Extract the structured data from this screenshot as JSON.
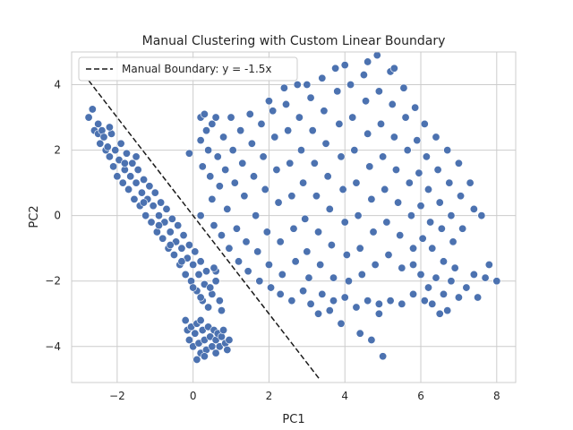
{
  "chart_data": {
    "type": "scatter",
    "title": "Manual Clustering with Custom Linear Boundary",
    "xlabel": "PC1",
    "ylabel": "PC2",
    "xlim": [
      -3.2,
      8.5
    ],
    "ylim": [
      -5.1,
      5.0
    ],
    "xticks": [
      -2,
      0,
      2,
      4,
      6,
      8
    ],
    "yticks": [
      -4,
      -2,
      0,
      2,
      4
    ],
    "xtick_labels": [
      "−2",
      "0",
      "2",
      "4",
      "6",
      "8"
    ],
    "ytick_labels": [
      "−4",
      "−2",
      "0",
      "2",
      "4"
    ],
    "grid": true,
    "legend_placement": "top-left",
    "point_color": "#4c72b0",
    "boundary_color": "#1a1a1a",
    "boundary": {
      "label": "Manual Boundary: y = -1.5x",
      "slope": -1.5,
      "x_range": [
        -2.75,
        3.35
      ]
    },
    "points": [
      [
        -2.75,
        3.0
      ],
      [
        -2.65,
        3.25
      ],
      [
        -2.6,
        2.6
      ],
      [
        -2.5,
        2.5
      ],
      [
        -2.45,
        2.2
      ],
      [
        -2.4,
        2.6
      ],
      [
        -2.3,
        2.0
      ],
      [
        -2.35,
        2.4
      ],
      [
        -2.2,
        1.8
      ],
      [
        -2.25,
        2.1
      ],
      [
        -2.15,
        2.5
      ],
      [
        -2.1,
        1.5
      ],
      [
        -2.05,
        2.0
      ],
      [
        -2.0,
        1.2
      ],
      [
        -1.95,
        1.7
      ],
      [
        -1.9,
        2.2
      ],
      [
        -1.85,
        1.0
      ],
      [
        -1.8,
        1.4
      ],
      [
        -1.75,
        1.9
      ],
      [
        -1.7,
        0.8
      ],
      [
        -1.65,
        1.2
      ],
      [
        -1.6,
        1.6
      ],
      [
        -1.55,
        0.5
      ],
      [
        -1.5,
        1.0
      ],
      [
        -1.45,
        1.4
      ],
      [
        -1.4,
        0.3
      ],
      [
        -1.35,
        0.7
      ],
      [
        -1.3,
        1.1
      ],
      [
        -1.25,
        0.0
      ],
      [
        -1.2,
        0.5
      ],
      [
        -1.15,
        0.9
      ],
      [
        -1.1,
        -0.2
      ],
      [
        -1.05,
        0.3
      ],
      [
        -1.0,
        0.7
      ],
      [
        -0.95,
        -0.5
      ],
      [
        -0.9,
        0.0
      ],
      [
        -0.85,
        0.4
      ],
      [
        -0.8,
        -0.7
      ],
      [
        -0.75,
        -0.2
      ],
      [
        -0.7,
        0.2
      ],
      [
        -0.65,
        -1.0
      ],
      [
        -0.6,
        -0.5
      ],
      [
        -0.55,
        -0.1
      ],
      [
        -0.5,
        -1.2
      ],
      [
        -0.45,
        -0.8
      ],
      [
        -0.4,
        -0.3
      ],
      [
        -0.35,
        -1.5
      ],
      [
        -0.3,
        -1.0
      ],
      [
        -0.25,
        -0.6
      ],
      [
        -0.2,
        -1.8
      ],
      [
        -0.15,
        -1.3
      ],
      [
        -0.1,
        -0.9
      ],
      [
        -0.05,
        -2.0
      ],
      [
        0.0,
        -1.5
      ],
      [
        0.05,
        -1.1
      ],
      [
        0.1,
        -2.3
      ],
      [
        0.15,
        -1.8
      ],
      [
        0.2,
        -1.4
      ],
      [
        0.25,
        -2.6
      ],
      [
        0.3,
        -2.1
      ],
      [
        0.35,
        -1.7
      ],
      [
        0.4,
        -2.8
      ],
      [
        0.5,
        -2.4
      ],
      [
        0.6,
        -2.0
      ],
      [
        0.7,
        -2.6
      ],
      [
        0.75,
        -2.9
      ],
      [
        0.6,
        -1.7
      ],
      [
        0.55,
        -1.6
      ],
      [
        -2.5,
        2.8
      ],
      [
        -2.2,
        2.7
      ],
      [
        -1.8,
        1.6
      ],
      [
        -1.5,
        1.8
      ],
      [
        -1.3,
        0.4
      ],
      [
        -0.9,
        -0.3
      ],
      [
        -0.6,
        -0.9
      ],
      [
        -0.3,
        -1.4
      ],
      [
        0.0,
        -2.2
      ],
      [
        0.2,
        -2.5
      ],
      [
        0.45,
        -2.2
      ],
      [
        -0.2,
        -3.2
      ],
      [
        -0.15,
        -3.5
      ],
      [
        -0.1,
        -3.8
      ],
      [
        -0.05,
        -3.4
      ],
      [
        0.0,
        -4.0
      ],
      [
        0.05,
        -3.6
      ],
      [
        0.1,
        -3.3
      ],
      [
        0.15,
        -3.9
      ],
      [
        0.2,
        -4.2
      ],
      [
        0.25,
        -3.5
      ],
      [
        0.3,
        -3.8
      ],
      [
        0.35,
        -4.1
      ],
      [
        0.4,
        -3.4
      ],
      [
        0.45,
        -3.7
      ],
      [
        0.5,
        -4.0
      ],
      [
        0.55,
        -3.5
      ],
      [
        0.6,
        -3.8
      ],
      [
        0.65,
        -3.6
      ],
      [
        0.7,
        -4.0
      ],
      [
        0.75,
        -3.7
      ],
      [
        0.8,
        -3.5
      ],
      [
        0.85,
        -3.9
      ],
      [
        0.9,
        -4.1
      ],
      [
        0.95,
        -3.8
      ],
      [
        0.1,
        -4.4
      ],
      [
        0.3,
        -4.3
      ],
      [
        0.6,
        -4.2
      ],
      [
        0.2,
        -3.2
      ],
      [
        0.2,
        3.0
      ],
      [
        0.2,
        2.3
      ],
      [
        0.25,
        1.5
      ],
      [
        0.2,
        0.0
      ],
      [
        -0.1,
        1.9
      ],
      [
        0.3,
        3.1
      ],
      [
        0.35,
        2.6
      ],
      [
        0.4,
        2.0
      ],
      [
        0.45,
        1.2
      ],
      [
        0.5,
        0.5
      ],
      [
        0.55,
        -0.3
      ],
      [
        0.5,
        2.8
      ],
      [
        0.6,
        3.0
      ],
      [
        0.65,
        1.8
      ],
      [
        0.7,
        0.9
      ],
      [
        0.75,
        -0.6
      ],
      [
        0.8,
        2.4
      ],
      [
        0.85,
        1.4
      ],
      [
        0.9,
        0.2
      ],
      [
        0.95,
        -1.0
      ],
      [
        1.0,
        3.0
      ],
      [
        1.05,
        2.0
      ],
      [
        1.1,
        1.0
      ],
      [
        1.15,
        -0.4
      ],
      [
        1.2,
        -1.4
      ],
      [
        1.25,
        2.6
      ],
      [
        1.3,
        1.6
      ],
      [
        1.35,
        0.6
      ],
      [
        1.4,
        -0.8
      ],
      [
        1.45,
        -1.7
      ],
      [
        1.5,
        3.1
      ],
      [
        1.55,
        2.2
      ],
      [
        1.6,
        1.2
      ],
      [
        1.65,
        0.0
      ],
      [
        1.7,
        -1.1
      ],
      [
        1.75,
        -2.0
      ],
      [
        1.8,
        2.8
      ],
      [
        1.85,
        1.8
      ],
      [
        1.9,
        0.8
      ],
      [
        1.95,
        -0.5
      ],
      [
        2.0,
        -1.5
      ],
      [
        2.05,
        -2.2
      ],
      [
        2.1,
        3.2
      ],
      [
        2.15,
        2.4
      ],
      [
        2.2,
        1.4
      ],
      [
        2.25,
        0.4
      ],
      [
        2.3,
        -0.8
      ],
      [
        2.35,
        -1.8
      ],
      [
        2.4,
        3.9
      ],
      [
        2.45,
        3.4
      ],
      [
        2.5,
        2.6
      ],
      [
        2.55,
        1.6
      ],
      [
        2.6,
        0.6
      ],
      [
        2.65,
        -0.4
      ],
      [
        2.7,
        -1.4
      ],
      [
        2.75,
        4.0
      ],
      [
        2.8,
        3.0
      ],
      [
        2.85,
        2.0
      ],
      [
        2.9,
        1.0
      ],
      [
        2.95,
        -0.1
      ],
      [
        3.0,
        -1.1
      ],
      [
        3.05,
        -1.9
      ],
      [
        3.1,
        3.6
      ],
      [
        3.15,
        2.6
      ],
      [
        3.2,
        1.6
      ],
      [
        3.25,
        0.6
      ],
      [
        3.3,
        -0.5
      ],
      [
        3.35,
        -1.5
      ],
      [
        3.4,
        4.2
      ],
      [
        3.45,
        3.2
      ],
      [
        3.5,
        2.2
      ],
      [
        3.55,
        1.2
      ],
      [
        3.6,
        0.2
      ],
      [
        3.65,
        -0.9
      ],
      [
        3.7,
        -1.9
      ],
      [
        3.75,
        4.5
      ],
      [
        3.8,
        3.8
      ],
      [
        3.85,
        2.8
      ],
      [
        3.9,
        1.8
      ],
      [
        3.95,
        0.8
      ],
      [
        4.0,
        -0.2
      ],
      [
        4.05,
        -1.2
      ],
      [
        4.1,
        -2.0
      ],
      [
        4.15,
        4.0
      ],
      [
        4.2,
        3.0
      ],
      [
        4.25,
        2.0
      ],
      [
        4.3,
        1.0
      ],
      [
        4.35,
        0.0
      ],
      [
        4.4,
        -1.0
      ],
      [
        4.45,
        -1.8
      ],
      [
        4.5,
        4.3
      ],
      [
        4.55,
        3.5
      ],
      [
        4.6,
        2.5
      ],
      [
        4.65,
        1.5
      ],
      [
        4.7,
        0.5
      ],
      [
        4.75,
        -0.5
      ],
      [
        4.8,
        -1.5
      ],
      [
        4.85,
        4.9
      ],
      [
        4.9,
        3.8
      ],
      [
        4.95,
        2.8
      ],
      [
        5.0,
        1.8
      ],
      [
        5.05,
        0.8
      ],
      [
        5.1,
        -0.2
      ],
      [
        5.15,
        -1.2
      ],
      [
        5.2,
        4.4
      ],
      [
        5.25,
        3.4
      ],
      [
        5.3,
        2.4
      ],
      [
        5.35,
        1.4
      ],
      [
        5.4,
        0.4
      ],
      [
        5.45,
        -0.6
      ],
      [
        5.5,
        -1.6
      ],
      [
        5.55,
        3.9
      ],
      [
        5.6,
        3.0
      ],
      [
        5.65,
        2.0
      ],
      [
        5.7,
        1.0
      ],
      [
        5.75,
        0.0
      ],
      [
        5.8,
        -1.0
      ],
      [
        5.85,
        3.3
      ],
      [
        5.9,
        2.3
      ],
      [
        5.95,
        1.3
      ],
      [
        6.0,
        0.3
      ],
      [
        6.05,
        -0.7
      ],
      [
        6.1,
        2.8
      ],
      [
        6.15,
        1.8
      ],
      [
        6.2,
        0.8
      ],
      [
        6.25,
        -0.2
      ],
      [
        6.3,
        -1.0
      ],
      [
        6.4,
        2.4
      ],
      [
        6.45,
        1.4
      ],
      [
        6.5,
        0.4
      ],
      [
        6.55,
        -0.4
      ],
      [
        6.6,
        -1.4
      ],
      [
        6.7,
        2.0
      ],
      [
        6.75,
        1.0
      ],
      [
        6.8,
        0.0
      ],
      [
        6.85,
        -0.8
      ],
      [
        7.0,
        1.6
      ],
      [
        7.05,
        0.6
      ],
      [
        7.1,
        -0.4
      ],
      [
        7.3,
        1.0
      ],
      [
        7.4,
        0.2
      ],
      [
        7.6,
        0.0
      ],
      [
        3.9,
        -3.3
      ],
      [
        4.4,
        -3.6
      ],
      [
        5.0,
        -4.3
      ],
      [
        4.7,
        -3.8
      ],
      [
        4.9,
        -3.0
      ],
      [
        2.0,
        3.5
      ],
      [
        3.0,
        4.0
      ],
      [
        4.0,
        4.6
      ],
      [
        4.6,
        4.7
      ],
      [
        5.3,
        4.5
      ],
      [
        2.3,
        -2.4
      ],
      [
        2.6,
        -2.6
      ],
      [
        2.9,
        -2.3
      ],
      [
        3.1,
        -2.7
      ],
      [
        3.4,
        -2.4
      ],
      [
        3.7,
        -2.6
      ],
      [
        4.0,
        -2.5
      ],
      [
        4.3,
        -2.8
      ],
      [
        4.6,
        -2.6
      ],
      [
        4.9,
        -2.7
      ],
      [
        5.2,
        -2.6
      ],
      [
        5.5,
        -2.7
      ],
      [
        5.8,
        -2.4
      ],
      [
        3.3,
        -3.0
      ],
      [
        3.6,
        -2.9
      ],
      [
        6.0,
        -1.8
      ],
      [
        6.2,
        -2.2
      ],
      [
        6.4,
        -1.9
      ],
      [
        6.6,
        -2.4
      ],
      [
        6.8,
        -2.0
      ],
      [
        7.0,
        -2.5
      ],
      [
        6.3,
        -2.7
      ],
      [
        6.7,
        -2.9
      ],
      [
        7.2,
        -2.2
      ],
      [
        6.5,
        -3.0
      ],
      [
        7.4,
        -1.8
      ],
      [
        7.7,
        -1.9
      ],
      [
        8.0,
        -2.0
      ],
      [
        7.5,
        -2.5
      ],
      [
        7.8,
        -1.5
      ],
      [
        5.8,
        -1.5
      ],
      [
        6.1,
        -2.6
      ],
      [
        6.9,
        -1.6
      ]
    ]
  }
}
